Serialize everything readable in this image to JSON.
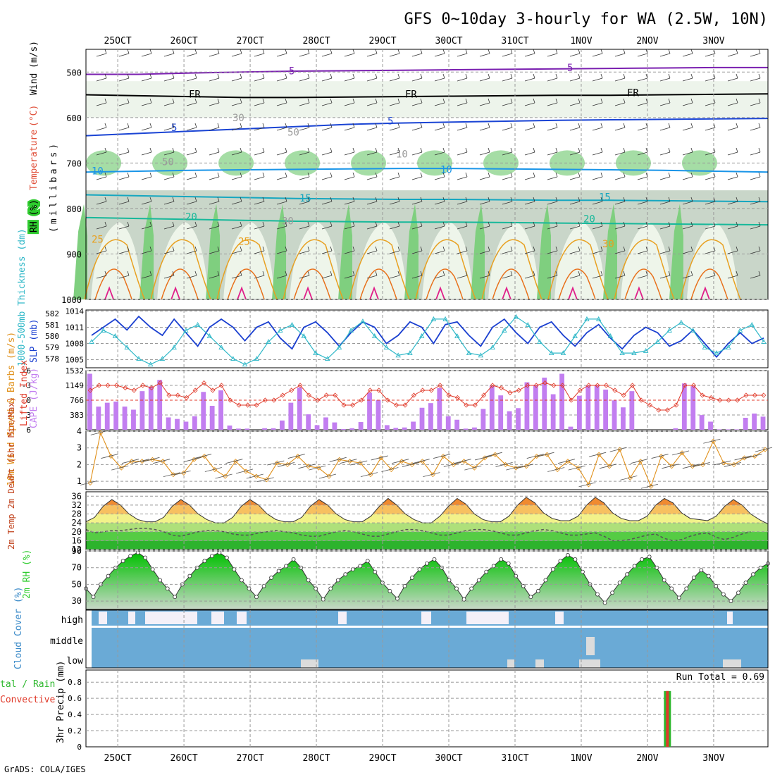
{
  "title": "GFS 0~10day 3-hourly for WA (2.5W, 10N)",
  "footer": "GrADS: COLA/IGES",
  "date_labels": [
    "25OCT",
    "26OCT",
    "27OCT",
    "28OCT",
    "29OCT",
    "30OCT",
    "31OCT",
    "1NOV",
    "2NOV",
    "3NOV"
  ],
  "colors": {
    "grid": "#999999",
    "sun": "#f4a000",
    "cloud": "#6aaad6",
    "rh": "#2ecc2e",
    "precip_total": "#2db82d",
    "precip_conv": "#e03a2a"
  },
  "chart_data": [
    {
      "type": "contour",
      "panel": "upper-air",
      "ylabel_parts": [
        "RH (%)",
        "Temperature",
        "(°C)",
        "Wind",
        "(m/s)"
      ],
      "ylabel2": "(millibars)",
      "y_ticks": [
        500,
        600,
        700,
        800,
        900,
        1000
      ],
      "ylim": [
        1000,
        450
      ],
      "contour_labels": [
        "5",
        "5",
        "FR",
        "FR",
        "FR",
        "5",
        "5",
        "10",
        "10",
        "15",
        "15",
        "20",
        "20",
        "25",
        "25",
        "30",
        "30",
        "50",
        "50",
        "10",
        "30"
      ],
      "isotherms": [
        {
          "level": 5,
          "p": [
            505,
            505,
            502,
            500,
            498,
            497,
            496,
            495,
            494,
            493,
            492,
            491,
            490,
            490
          ]
        },
        {
          "level": 5,
          "p": [
            640,
            635,
            630,
            625,
            620,
            615,
            612,
            610,
            608,
            606,
            605,
            604,
            603,
            602
          ]
        },
        {
          "level": 0,
          "p": [
            550,
            552,
            554,
            556,
            556,
            555,
            554,
            553,
            552,
            551,
            551,
            550,
            549,
            548
          ]
        },
        {
          "level": 10,
          "p": [
            720,
            718,
            716,
            715,
            714,
            713,
            712,
            712,
            713,
            714,
            715,
            716,
            718,
            720
          ]
        },
        {
          "level": 15,
          "p": [
            770,
            772,
            774,
            776,
            778,
            779,
            780,
            780,
            781,
            782,
            782,
            783,
            784,
            785
          ]
        },
        {
          "level": 20,
          "p": [
            820,
            822,
            824,
            826,
            828,
            829,
            830,
            830,
            831,
            832,
            833,
            834,
            835,
            836
          ]
        }
      ]
    },
    {
      "type": "line",
      "panel": "slp-thickness",
      "ylabel": "SLP (mb)",
      "ylabel2": "1000-500mb Thickness (dm)",
      "y_ticks_left": [
        578,
        579,
        580,
        581,
        582
      ],
      "y_ticks_right": [
        1005,
        1008,
        1011,
        1014
      ],
      "series": [
        {
          "values": [
            1009.5,
            1011,
            1012.5,
            1010.5,
            1013,
            1011,
            1009.5,
            1012.5,
            1010,
            1007.5,
            1011,
            1012.5,
            1011,
            1008.5,
            1011,
            1012,
            1009,
            1007,
            1011,
            1012,
            1010,
            1007.5,
            1010,
            1012,
            1011,
            1008,
            1009.5,
            1012,
            1011,
            1008,
            1011.5,
            1012,
            1009.5,
            1007.5,
            1011,
            1012.5,
            1010,
            1008,
            1011,
            1012,
            1009.5,
            1007.5,
            1010,
            1011.5,
            1009,
            1007,
            1009.5,
            1011,
            1010,
            1007.5,
            1008.5,
            1010.5,
            1008,
            1005.5,
            1008,
            1010,
            1008,
            1009
          ]
        },
        {
          "values": [
            579.5,
            580.5,
            580,
            579,
            578,
            577.5,
            578,
            579,
            580.5,
            581,
            580,
            579,
            578,
            577.5,
            578,
            579.5,
            580.5,
            581,
            580,
            578.5,
            578,
            579,
            580.5,
            581.3,
            580,
            579,
            578.3,
            578.5,
            580,
            581.5,
            581.5,
            580,
            578.5,
            578.3,
            579,
            580.5,
            581.7,
            581,
            579.5,
            578.5,
            578.5,
            580,
            581.5,
            581.5,
            580,
            578.5,
            578.5,
            578.7,
            579.5,
            580.5,
            581.2,
            580.5,
            579,
            578.5,
            579,
            580.5,
            581,
            579.5
          ]
        }
      ]
    },
    {
      "type": "bar",
      "panel": "cape-li",
      "ylabel": "CAPE (J/kg)",
      "ylabel2": "Lifted Index",
      "y_ticks_left": [
        383,
        766,
        1149,
        1532
      ],
      "y_ticks_right": [
        "-6",
        "-3",
        "0",
        "3",
        "6"
      ],
      "series": [
        {
          "values": [
            1450,
            600,
            700,
            730,
            600,
            520,
            1000,
            1120,
            1290,
            320,
            280,
            210,
            350,
            980,
            620,
            1020,
            110,
            30,
            30,
            0,
            40,
            40,
            240,
            700,
            1090,
            400,
            120,
            320,
            190,
            20,
            40,
            200,
            960,
            770,
            120,
            50,
            60,
            210,
            570,
            690,
            1080,
            350,
            260,
            30,
            60,
            540,
            1140,
            890,
            480,
            560,
            1230,
            1140,
            1350,
            920,
            1450,
            80,
            880,
            1140,
            1140,
            1040,
            760,
            580,
            1000,
            0,
            0,
            0,
            0,
            40,
            1200,
            1130,
            380,
            210,
            10,
            10,
            10,
            310,
            420,
            340
          ]
        },
        {
          "values": [
            -2,
            -3,
            -3,
            -3,
            -2.5,
            -2,
            -3,
            -2.5,
            -3.5,
            -1,
            -1,
            -0.5,
            -2,
            -3.5,
            -2,
            -3,
            0,
            1,
            1,
            1,
            0,
            0,
            -1,
            -2,
            -3,
            -1,
            0,
            -1,
            -1,
            1,
            1,
            0,
            -2,
            -2,
            0,
            1,
            1,
            -1,
            -2,
            -2,
            -3,
            -1,
            -0.5,
            1,
            1,
            -1,
            -3,
            -2.5,
            -1.5,
            -2,
            -3,
            -3,
            -3.5,
            -3,
            -3,
            0,
            -2,
            -3,
            -3,
            -3,
            -2,
            -1,
            -3,
            0,
            1,
            2,
            2,
            1,
            -3,
            -3,
            -1,
            -0.5,
            0,
            0,
            0,
            -1,
            -1,
            -1
          ]
        }
      ]
    },
    {
      "type": "line",
      "panel": "wind10m",
      "ylabel": "10m Wind Speed & Barbs (m/s)",
      "y_ticks": [
        1,
        2,
        3,
        4
      ],
      "ylim": [
        0.5,
        4
      ],
      "series": [
        {
          "values": [
            0.9,
            3.9,
            2.5,
            1.8,
            2.2,
            2.2,
            2.3,
            2.2,
            1.4,
            1.5,
            2.3,
            2.5,
            1.7,
            1.3,
            2.2,
            1.6,
            1.3,
            1.1,
            2.1,
            2,
            2.5,
            1.9,
            1.8,
            1.3,
            2.3,
            2.2,
            2.1,
            1.4,
            2.4,
            1.7,
            2.2,
            2,
            2.2,
            1.4,
            2.5,
            2,
            2.2,
            1.8,
            2.4,
            2.6,
            2,
            1.8,
            1.9,
            2.5,
            2.6,
            1.7,
            2.2,
            1.8,
            0.8,
            2.6,
            1.9,
            2.9,
            1.2,
            2.2,
            0.7,
            2.5,
            1.9,
            2.7,
            1.9,
            2,
            3.4,
            2.1,
            2,
            2.4,
            2.5,
            2.9
          ]
        }
      ]
    },
    {
      "type": "area",
      "panel": "temp-dewpt",
      "ylabel": "2m Temp 2m DewPt (6hr Min/Max)",
      "y_ticks": [
        36,
        32,
        28,
        24,
        20,
        16,
        12
      ],
      "ylim": [
        12,
        38
      ],
      "series": [
        {
          "values": [
            24.5,
            26.5,
            31.5,
            34.5,
            32,
            28,
            25.5,
            24.5,
            24.5,
            26.5,
            31.5,
            34.5,
            32,
            28,
            25.5,
            24,
            24,
            26.5,
            31.5,
            34.5,
            32,
            28,
            25.5,
            24.5,
            24.5,
            26.5,
            31.5,
            34.5,
            32,
            28,
            25.5,
            24.5,
            24.5,
            27,
            31.5,
            35,
            32,
            28,
            25.5,
            24,
            24,
            27,
            31.5,
            35,
            32.5,
            28,
            25.5,
            24.5,
            24.5,
            27,
            32,
            35.5,
            33,
            28.5,
            26,
            25,
            25,
            27,
            32,
            35.5,
            33,
            28.5,
            26,
            25,
            25,
            27,
            32,
            35,
            33,
            28.5,
            26,
            25.5,
            25,
            27,
            31.5,
            34.5,
            32,
            28,
            25.5,
            23.5
          ]
        },
        {
          "values": [
            21,
            19.5,
            20,
            20.5,
            20.5,
            21,
            21.5,
            21.5,
            21,
            20,
            18.5,
            18,
            19,
            20,
            20.5,
            20.5,
            20,
            19,
            18.5,
            18.5,
            19.5,
            20,
            20.5,
            20,
            19.5,
            18.5,
            18,
            18,
            19,
            20,
            20.5,
            20,
            19,
            18,
            18,
            19,
            20,
            21,
            21,
            20.5,
            19.5,
            18.5,
            18.5,
            19.5,
            20.5,
            21,
            21,
            20.5,
            19.5,
            18.5,
            18.5,
            19.5,
            20.5,
            21,
            20.5,
            19.5,
            18.5,
            18.5,
            19,
            19.5,
            18,
            16,
            16,
            16.5,
            17.5,
            18.5,
            19,
            17,
            16,
            16.5,
            18,
            19,
            19.5,
            17.5,
            16.5,
            17.5,
            19,
            20
          ]
        }
      ]
    },
    {
      "type": "area",
      "panel": "rh2m",
      "ylabel": "2m RH (%)",
      "y_ticks": [
        30,
        50,
        70,
        90
      ],
      "ylim": [
        20,
        90
      ],
      "series": [
        {
          "values": [
            45,
            35,
            50,
            60,
            70,
            78,
            84,
            88,
            82,
            68,
            55,
            45,
            35,
            50,
            60,
            70,
            78,
            84,
            88,
            82,
            68,
            55,
            45,
            35,
            48,
            58,
            66,
            72,
            80,
            70,
            55,
            45,
            32,
            45,
            55,
            62,
            68,
            72,
            78,
            65,
            52,
            42,
            33,
            48,
            58,
            68,
            75,
            80,
            70,
            55,
            45,
            32,
            45,
            55,
            65,
            72,
            80,
            75,
            60,
            48,
            35,
            42,
            55,
            68,
            78,
            85,
            80,
            65,
            50,
            38,
            28,
            40,
            52,
            62,
            72,
            80,
            83,
            70,
            55,
            45,
            34,
            45,
            58,
            67,
            60,
            48,
            38,
            30,
            40,
            52,
            62,
            70,
            75
          ]
        }
      ]
    },
    {
      "type": "bar",
      "panel": "cloud-cover",
      "ylabel": "Cloud Cover (%)",
      "categories": [
        "high",
        "middle",
        "low"
      ]
    },
    {
      "type": "bar",
      "panel": "precip",
      "ylabel": "3hr Precip (mm)",
      "ylabel_partial": [
        "tal / Rain",
        "Convective"
      ],
      "annotation": "Run Total = 0.69",
      "y_ticks": [
        0,
        0.2,
        0.4,
        0.6,
        0.8
      ],
      "ylim": [
        0,
        0.95
      ],
      "series": [
        {
          "values": [
            {
              "x": 66.1,
              "y": 0.69
            }
          ]
        }
      ]
    }
  ]
}
